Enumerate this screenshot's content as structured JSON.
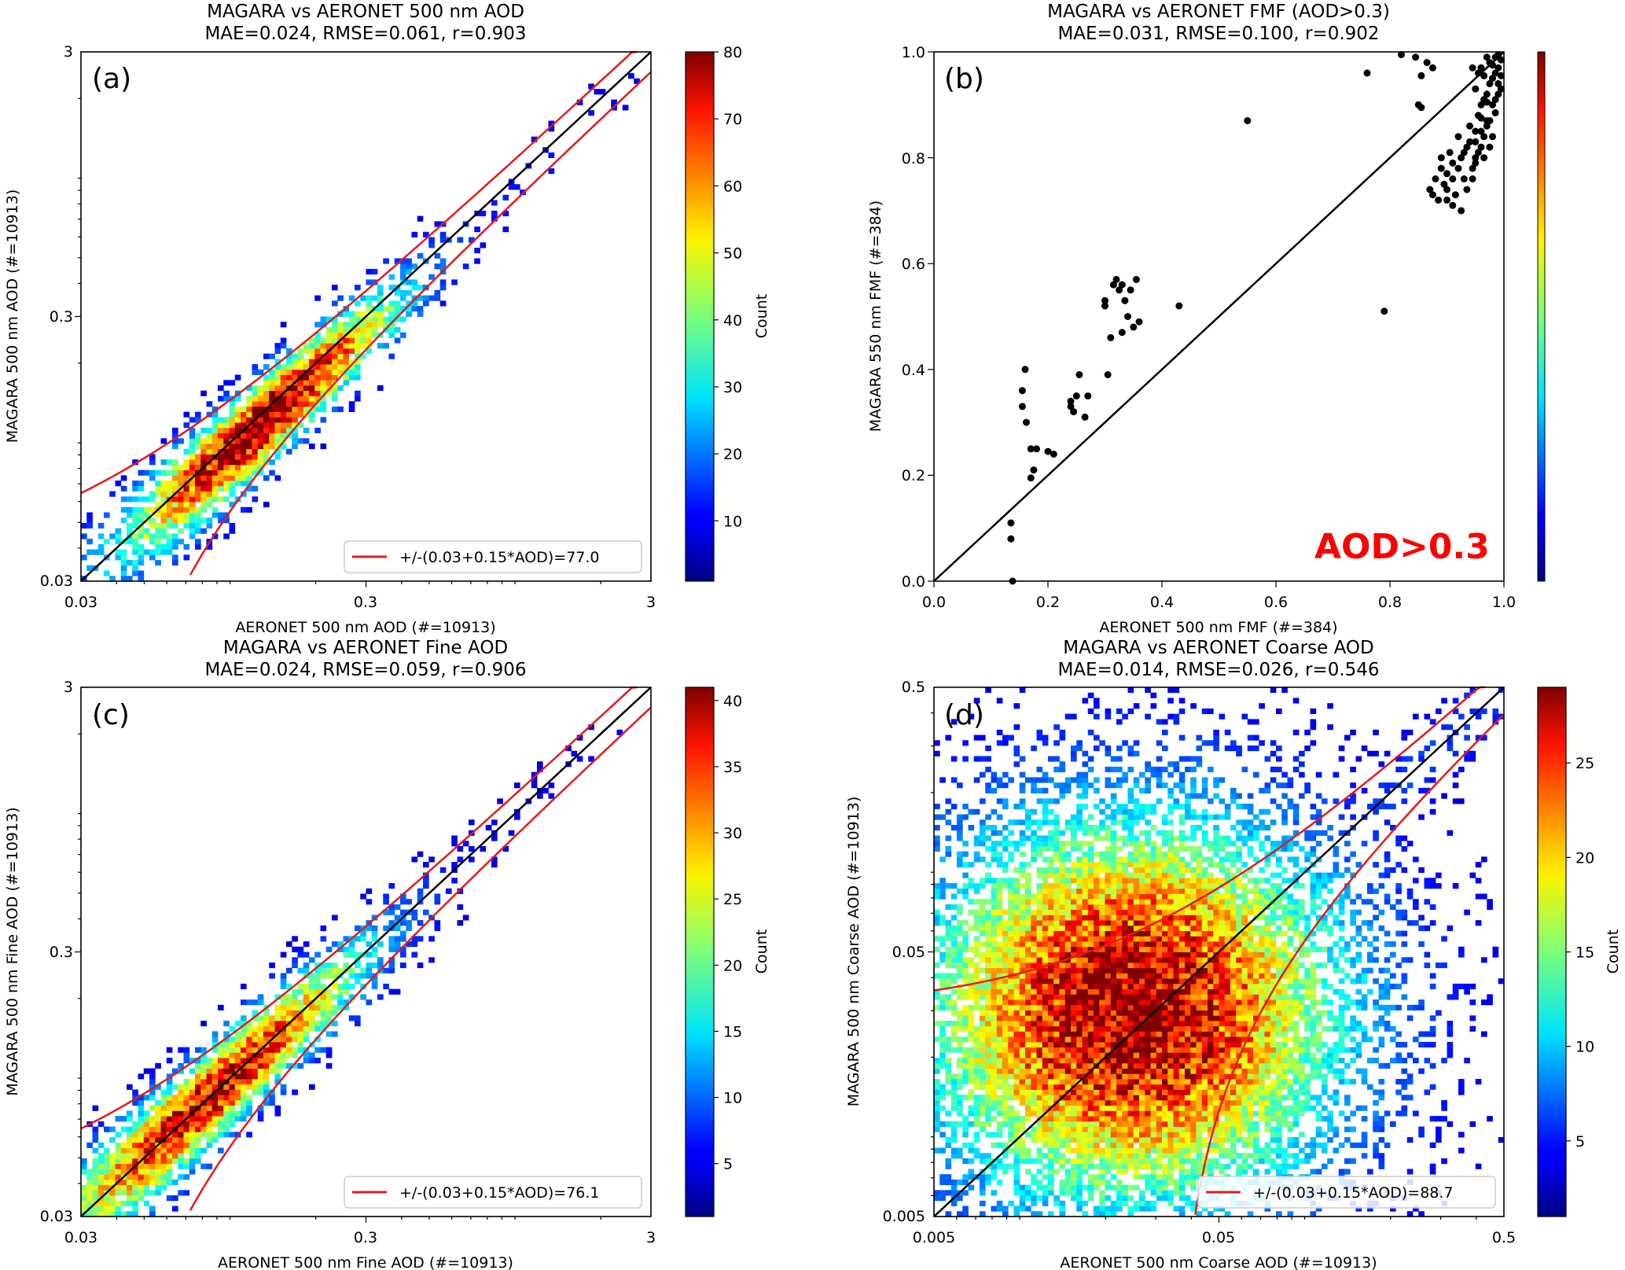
{
  "chart_data": [
    {
      "id": "a",
      "type": "heatmap",
      "panel_label": "(a)",
      "title": "MAGARA vs AERONET 500 nm AOD",
      "subtitle": "MAE=0.024, RMSE=0.061, r=0.903",
      "xlabel": "AERONET 500 nm AOD (#=10913)",
      "ylabel": "MAGARA 500 nm AOD (#=10913)",
      "xscale": "log",
      "yscale": "log",
      "xlim": [
        0.03,
        3
      ],
      "ylim": [
        0.03,
        3
      ],
      "xticks": [
        "0.03",
        "0.3",
        "3"
      ],
      "yticks": [
        "0.03",
        "0.3",
        "3"
      ],
      "colorbar": {
        "label": "Count",
        "range": [
          1,
          80
        ],
        "ticks": [
          "10",
          "20",
          "30",
          "40",
          "50",
          "60",
          "70",
          "80"
        ]
      },
      "legend": {
        "entry": "+/-(0.03+0.15*AOD)=77.0",
        "position": "lower right"
      },
      "density": {
        "peak_x": 0.13,
        "peak_y": 0.12,
        "peak_count": 80,
        "spread": 0.33
      },
      "lines": [
        "1:1 line (black)",
        "expected error envelope ±(0.03+0.15·AOD) (red)"
      ]
    },
    {
      "id": "b",
      "type": "scatter",
      "panel_label": "(b)",
      "title": "MAGARA vs AERONET FMF (AOD>0.3)",
      "subtitle": "MAE=0.031, RMSE=0.100, r=0.902",
      "xlabel": "AERONET 500 nm FMF (#=384)",
      "ylabel": "MAGARA 550 nm FMF (#=384)",
      "xlim": [
        0,
        1
      ],
      "ylim": [
        0,
        1
      ],
      "xticks": [
        "0.0",
        "0.2",
        "0.4",
        "0.6",
        "0.8",
        "1.0"
      ],
      "yticks": [
        "0.0",
        "0.2",
        "0.4",
        "0.6",
        "0.8",
        "1.0"
      ],
      "annotation": "AOD>0.3",
      "annotation_color": "#ff0000",
      "points": [
        [
          0.135,
          0.11
        ],
        [
          0.135,
          0.08
        ],
        [
          0.138,
          0.0
        ],
        [
          0.16,
          0.4
        ],
        [
          0.155,
          0.36
        ],
        [
          0.155,
          0.33
        ],
        [
          0.162,
          0.3
        ],
        [
          0.17,
          0.25
        ],
        [
          0.175,
          0.21
        ],
        [
          0.17,
          0.195
        ],
        [
          0.18,
          0.25
        ],
        [
          0.2,
          0.245
        ],
        [
          0.21,
          0.24
        ],
        [
          0.24,
          0.33
        ],
        [
          0.24,
          0.34
        ],
        [
          0.245,
          0.32
        ],
        [
          0.25,
          0.35
        ],
        [
          0.255,
          0.39
        ],
        [
          0.265,
          0.31
        ],
        [
          0.27,
          0.35
        ],
        [
          0.3,
          0.53
        ],
        [
          0.3,
          0.52
        ],
        [
          0.305,
          0.39
        ],
        [
          0.31,
          0.46
        ],
        [
          0.315,
          0.56
        ],
        [
          0.32,
          0.57
        ],
        [
          0.325,
          0.55
        ],
        [
          0.33,
          0.56
        ],
        [
          0.33,
          0.47
        ],
        [
          0.335,
          0.53
        ],
        [
          0.34,
          0.5
        ],
        [
          0.345,
          0.55
        ],
        [
          0.35,
          0.48
        ],
        [
          0.355,
          0.57
        ],
        [
          0.36,
          0.49
        ],
        [
          0.43,
          0.52
        ],
        [
          0.55,
          0.87
        ],
        [
          0.76,
          0.96
        ],
        [
          0.79,
          0.51
        ],
        [
          0.82,
          0.995
        ],
        [
          0.845,
          0.99
        ],
        [
          0.865,
          0.98
        ],
        [
          0.875,
          0.97
        ],
        [
          0.855,
          0.955
        ],
        [
          0.85,
          0.9
        ],
        [
          0.855,
          0.895
        ],
        [
          0.87,
          0.74
        ],
        [
          0.875,
          0.73
        ],
        [
          0.88,
          0.76
        ],
        [
          0.885,
          0.72
        ],
        [
          0.89,
          0.78
        ],
        [
          0.895,
          0.75
        ],
        [
          0.9,
          0.77
        ],
        [
          0.905,
          0.81
        ],
        [
          0.91,
          0.79
        ],
        [
          0.915,
          0.73
        ],
        [
          0.92,
          0.84
        ],
        [
          0.925,
          0.8
        ],
        [
          0.93,
          0.76
        ],
        [
          0.935,
          0.82
        ],
        [
          0.94,
          0.86
        ],
        [
          0.945,
          0.78
        ],
        [
          0.95,
          0.83
        ],
        [
          0.955,
          0.88
        ],
        [
          0.96,
          0.85
        ],
        [
          0.965,
          0.8
        ],
        [
          0.97,
          0.87
        ],
        [
          0.975,
          0.82
        ],
        [
          0.98,
          0.84
        ],
        [
          0.91,
          0.71
        ],
        [
          0.925,
          0.7
        ],
        [
          0.935,
          0.74
        ],
        [
          0.89,
          0.8
        ],
        [
          0.9,
          0.74
        ],
        [
          0.95,
          0.79
        ],
        [
          0.96,
          0.9
        ],
        [
          0.965,
          0.91
        ],
        [
          0.97,
          0.92
        ],
        [
          0.975,
          0.94
        ],
        [
          0.98,
          0.95
        ],
        [
          0.985,
          0.96
        ],
        [
          0.99,
          0.97
        ],
        [
          0.95,
          0.93
        ],
        [
          0.96,
          0.97
        ],
        [
          0.97,
          0.99
        ],
        [
          0.975,
          0.98
        ],
        [
          0.985,
          0.99
        ],
        [
          0.99,
          0.995
        ],
        [
          0.995,
          0.985
        ],
        [
          0.965,
          0.955
        ],
        [
          0.955,
          0.96
        ],
        [
          0.945,
          0.97
        ],
        [
          0.98,
          0.975
        ],
        [
          0.99,
          0.94
        ],
        [
          0.985,
          0.91
        ],
        [
          0.995,
          0.93
        ],
        [
          0.97,
          0.905
        ],
        [
          0.96,
          0.875
        ],
        [
          0.95,
          0.85
        ],
        [
          0.94,
          0.83
        ],
        [
          0.93,
          0.81
        ],
        [
          0.92,
          0.78
        ],
        [
          0.91,
          0.76
        ],
        [
          0.9,
          0.72
        ],
        [
          0.945,
          0.76
        ],
        [
          0.955,
          0.81
        ],
        [
          0.965,
          0.84
        ],
        [
          0.975,
          0.87
        ],
        [
          0.985,
          0.885
        ],
        [
          0.995,
          0.955
        ],
        [
          0.99,
          0.92
        ],
        [
          0.98,
          0.9
        ],
        [
          0.97,
          0.86
        ],
        [
          0.96,
          0.82
        ],
        [
          0.95,
          0.8
        ]
      ],
      "lines": [
        "1:1 line (black)"
      ]
    },
    {
      "id": "c",
      "type": "heatmap",
      "panel_label": "(c)",
      "title": "MAGARA vs AERONET Fine AOD",
      "subtitle": "MAE=0.024, RMSE=0.059, r=0.906",
      "xlabel": "AERONET 500 nm Fine AOD (#=10913)",
      "ylabel": "MAGARA 500 nm Fine AOD (#=10913)",
      "xscale": "log",
      "yscale": "log",
      "xlim": [
        0.03,
        3
      ],
      "ylim": [
        0.03,
        3
      ],
      "xticks": [
        "0.03",
        "0.3",
        "3"
      ],
      "yticks": [
        "0.03",
        "0.3",
        "3"
      ],
      "colorbar": {
        "label": "Count",
        "range": [
          1,
          41
        ],
        "ticks": [
          "5",
          "10",
          "15",
          "20",
          "25",
          "30",
          "35",
          "40"
        ]
      },
      "legend": {
        "entry": "+/-(0.03+0.15*AOD)=76.1",
        "position": "lower right"
      },
      "density": {
        "peak_x": 0.085,
        "peak_y": 0.085,
        "peak_count": 41,
        "spread": 0.38
      },
      "lines": [
        "1:1 line (black)",
        "expected error envelope ±(0.03+0.15·AOD) (red)"
      ]
    },
    {
      "id": "d",
      "type": "heatmap",
      "panel_label": "(d)",
      "title": "MAGARA vs AERONET Coarse AOD",
      "subtitle": "MAE=0.014, RMSE=0.026, r=0.546",
      "xlabel": "AERONET 500 nm Coarse AOD (#=10913)",
      "ylabel": "MAGARA 500 nm Coarse AOD (#=10913)",
      "xscale": "log",
      "yscale": "log",
      "xlim": [
        0.005,
        0.5
      ],
      "ylim": [
        0.005,
        0.5
      ],
      "xticks": [
        "0.005",
        "0.05",
        "0.5"
      ],
      "yticks": [
        "0.005",
        "0.05",
        "0.5"
      ],
      "colorbar": {
        "label": "Count",
        "range": [
          1,
          29
        ],
        "ticks": [
          "5",
          "10",
          "15",
          "20",
          "25"
        ]
      },
      "legend": {
        "entry": "+/-(0.03+0.15*AOD)=88.7",
        "position": "lower right"
      },
      "density": {
        "peak_x": 0.025,
        "peak_y": 0.03,
        "peak_count": 29,
        "spread": 0.5
      },
      "lines": [
        "1:1 line (black)",
        "expected error envelope ±(0.03+0.15·AOD) (red)"
      ]
    }
  ]
}
